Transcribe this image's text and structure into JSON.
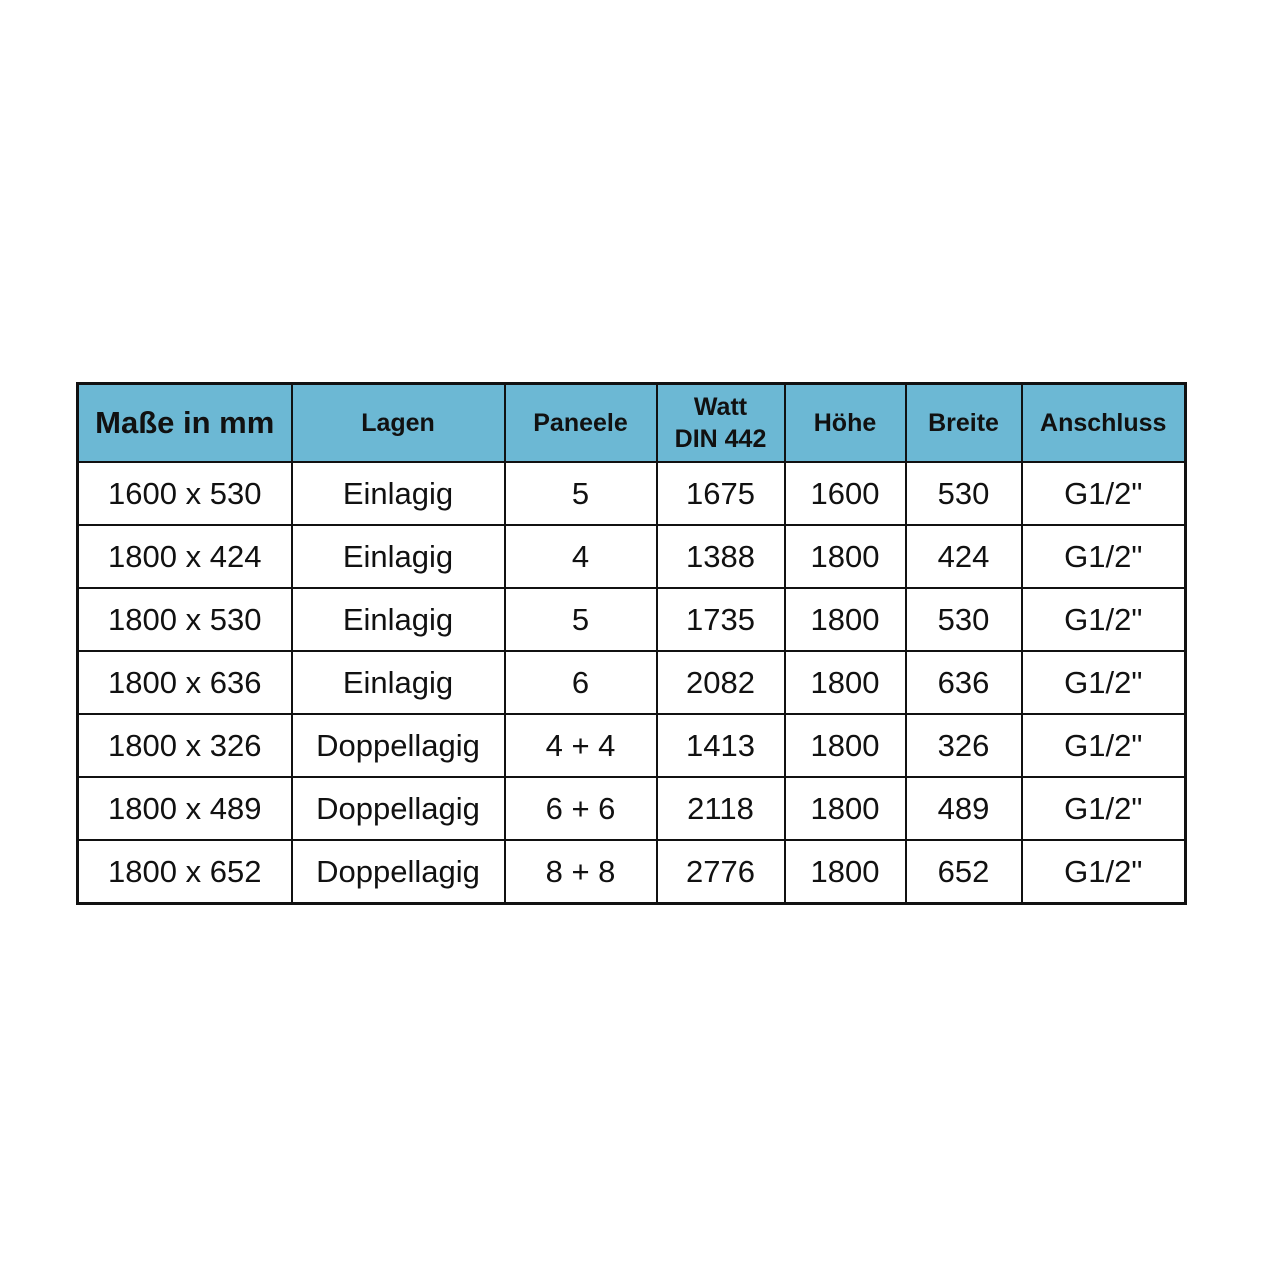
{
  "colors": {
    "header_bg": "#6cb8d4",
    "border": "#111111"
  },
  "table": {
    "headers": [
      "Maße in mm",
      "Lagen",
      "Paneele",
      "Watt",
      "Höhe",
      "Breite",
      "Anschluss"
    ],
    "header_watt_sub": "DIN 442",
    "rows": [
      [
        "1600 x 530",
        "Einlagig",
        "5",
        "1675",
        "1600",
        "530",
        "G1/2\""
      ],
      [
        "1800 x 424",
        "Einlagig",
        "4",
        "1388",
        "1800",
        "424",
        "G1/2\""
      ],
      [
        "1800 x 530",
        "Einlagig",
        "5",
        "1735",
        "1800",
        "530",
        "G1/2\""
      ],
      [
        "1800 x 636",
        "Einlagig",
        "6",
        "2082",
        "1800",
        "636",
        "G1/2\""
      ],
      [
        "1800 x 326",
        "Doppellagig",
        "4 + 4",
        "1413",
        "1800",
        "326",
        "G1/2\""
      ],
      [
        "1800 x 489",
        "Doppellagig",
        "6 + 6",
        "2118",
        "1800",
        "489",
        "G1/2\""
      ],
      [
        "1800 x 652",
        "Doppellagig",
        "8 + 8",
        "2776",
        "1800",
        "652",
        "G1/2\""
      ]
    ]
  }
}
